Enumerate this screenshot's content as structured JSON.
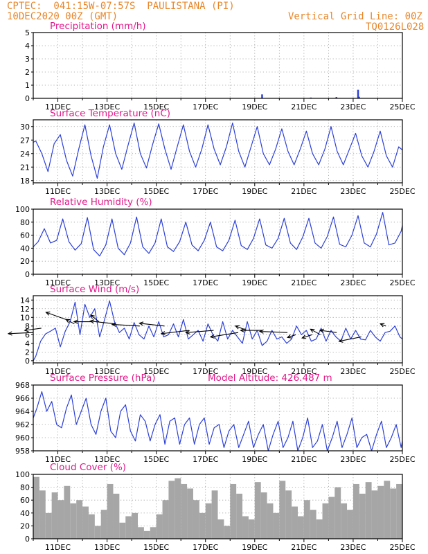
{
  "header": {
    "left_line1": "CPTEC:  041:15W-07:57S  PAULISTANA (PI)",
    "left_line2": "10DEC2020 00Z (GMT)",
    "right_line1": "Vertical Grid Line: 00Z",
    "right_line2": "TQ0126L028"
  },
  "colors": {
    "header": "#e8862a",
    "title": "#e0198a",
    "line": "#2b3fd6",
    "cloud": "#a6a6a6",
    "grid": "#9a9a9a"
  },
  "chart_data": [
    {
      "type": "bar",
      "title": "Precipitation (mm/h)",
      "x_tick_labels": [
        "11DEC",
        "13DEC",
        "15DEC",
        "17DEC",
        "19DEC",
        "21DEC",
        "23DEC",
        "25DEC"
      ],
      "ylim": [
        0,
        5
      ],
      "yticks": [
        "0",
        "1",
        "2",
        "3",
        "4",
        "5"
      ],
      "grid": true,
      "series": [
        {
          "x_days": [
            9.3,
            11.28,
            12.32,
            13.2,
            13.24
          ],
          "values": [
            0.3,
            0.06,
            0.1,
            0.65,
            0.12
          ]
        }
      ]
    },
    {
      "type": "line",
      "title": "Surface Temperature (nC)",
      "x_tick_labels": [
        "11DEC",
        "13DEC",
        "15DEC",
        "17DEC",
        "19DEC",
        "21DEC",
        "23DEC",
        "25DEC"
      ],
      "ylim": [
        17.5,
        31.5
      ],
      "yticks": [
        "18",
        "21",
        "24",
        "27",
        "30"
      ],
      "grid": true,
      "series": [
        {
          "x_days": [
            0.0,
            0.1,
            0.35,
            0.6,
            0.85,
            1.1,
            1.35,
            1.6,
            1.85,
            2.1,
            2.35,
            2.6,
            2.85,
            3.1,
            3.35,
            3.6,
            3.85,
            4.1,
            4.35,
            4.6,
            4.85,
            5.1,
            5.35,
            5.6,
            5.85,
            6.1,
            6.35,
            6.6,
            6.85,
            7.1,
            7.35,
            7.6,
            7.85,
            8.1,
            8.35,
            8.6,
            8.85,
            9.1,
            9.35,
            9.6,
            9.85,
            10.1,
            10.35,
            10.6,
            10.85,
            11.1,
            11.35,
            11.6,
            11.85,
            12.1,
            12.35,
            12.6,
            12.85,
            13.1,
            13.35,
            13.6,
            13.85,
            14.1,
            14.35,
            14.6,
            14.85,
            15.0
          ],
          "values": [
            26.5,
            26.8,
            24.0,
            20.0,
            26.2,
            28.2,
            22.5,
            19.0,
            25.0,
            30.4,
            23.5,
            18.5,
            25.5,
            30.4,
            24.0,
            20.5,
            25.8,
            30.8,
            24.0,
            20.8,
            26.0,
            30.6,
            25.0,
            20.5,
            25.5,
            30.4,
            24.5,
            21.0,
            25.0,
            30.4,
            25.0,
            21.5,
            25.5,
            30.8,
            24.5,
            21.0,
            25.5,
            30.0,
            24.0,
            21.5,
            25.0,
            29.5,
            24.5,
            21.5,
            25.0,
            29.0,
            24.0,
            21.5,
            25.0,
            30.0,
            24.5,
            21.5,
            25.0,
            28.5,
            23.5,
            21.0,
            24.5,
            29.0,
            23.5,
            21.0,
            25.5,
            24.8
          ]
        }
      ]
    },
    {
      "type": "line",
      "title": "Relative Humidity (%)",
      "x_tick_labels": [
        "11DEC",
        "13DEC",
        "15DEC",
        "17DEC",
        "19DEC",
        "21DEC",
        "23DEC",
        "25DEC"
      ],
      "ylim": [
        0,
        100
      ],
      "yticks": [
        "0",
        "20",
        "40",
        "60",
        "80",
        "100"
      ],
      "grid": true,
      "series": [
        {
          "x_days": [
            0.0,
            0.2,
            0.45,
            0.7,
            0.95,
            1.2,
            1.45,
            1.7,
            1.95,
            2.2,
            2.45,
            2.7,
            2.95,
            3.2,
            3.45,
            3.7,
            3.95,
            4.2,
            4.45,
            4.7,
            4.95,
            5.2,
            5.45,
            5.7,
            5.95,
            6.2,
            6.45,
            6.7,
            6.95,
            7.2,
            7.45,
            7.7,
            7.95,
            8.2,
            8.45,
            8.7,
            8.95,
            9.2,
            9.45,
            9.7,
            9.95,
            10.2,
            10.45,
            10.7,
            10.95,
            11.2,
            11.45,
            11.7,
            11.95,
            12.2,
            12.45,
            12.7,
            12.95,
            13.2,
            13.45,
            13.7,
            13.95,
            14.2,
            14.45,
            14.7,
            14.95,
            15.0
          ],
          "values": [
            42,
            50,
            70,
            48,
            52,
            85,
            50,
            37,
            47,
            87,
            38,
            28,
            45,
            85,
            40,
            30,
            48,
            88,
            42,
            32,
            48,
            85,
            42,
            35,
            50,
            80,
            45,
            36,
            52,
            80,
            42,
            36,
            52,
            83,
            44,
            38,
            55,
            85,
            45,
            40,
            55,
            86,
            48,
            38,
            57,
            86,
            48,
            40,
            58,
            88,
            46,
            42,
            60,
            90,
            48,
            42,
            62,
            95,
            45,
            48,
            66,
            75
          ]
        }
      ]
    },
    {
      "type": "line",
      "title": "Surface Wind (m/s)",
      "x_tick_labels": [
        "11DEC",
        "13DEC",
        "15DEC",
        "17DEC",
        "19DEC",
        "21DEC",
        "23DEC",
        "25DEC"
      ],
      "ylim": [
        -0.5,
        15
      ],
      "yticks": [
        "0",
        "2",
        "4",
        "6",
        "8",
        "10",
        "12",
        "14"
      ],
      "grid": true,
      "series": [
        {
          "x_days": [
            0.0,
            0.1,
            0.3,
            0.5,
            0.7,
            0.9,
            1.1,
            1.3,
            1.5,
            1.7,
            1.9,
            2.1,
            2.3,
            2.5,
            2.7,
            2.9,
            3.1,
            3.3,
            3.5,
            3.7,
            3.9,
            4.1,
            4.3,
            4.5,
            4.7,
            4.9,
            5.1,
            5.3,
            5.5,
            5.7,
            5.9,
            6.1,
            6.3,
            6.5,
            6.7,
            6.9,
            7.1,
            7.3,
            7.5,
            7.7,
            7.9,
            8.1,
            8.3,
            8.5,
            8.7,
            8.9,
            9.1,
            9.3,
            9.5,
            9.7,
            9.9,
            10.1,
            10.3,
            10.5,
            10.7,
            10.9,
            11.1,
            11.3,
            11.5,
            11.7,
            11.9,
            12.1,
            12.3,
            12.5,
            12.7,
            12.9,
            13.1,
            13.3,
            13.5,
            13.7,
            13.9,
            14.1,
            14.3,
            14.5,
            14.7,
            14.9,
            15.0
          ],
          "values": [
            0,
            1.0,
            4.5,
            6.2,
            6.8,
            7.5,
            3.2,
            6.8,
            9.0,
            13.5,
            6.0,
            13.0,
            10.0,
            12.0,
            5.5,
            9.5,
            13.8,
            9.0,
            6.5,
            7.5,
            5.0,
            8.8,
            6.0,
            5.0,
            8.0,
            5.5,
            9.0,
            5.5,
            6.0,
            8.5,
            5.5,
            9.5,
            5.0,
            6.0,
            7.0,
            4.5,
            8.5,
            6.0,
            4.5,
            9.0,
            5.0,
            7.0,
            5.5,
            4.0,
            9.0,
            5.0,
            7.0,
            3.5,
            4.5,
            7.0,
            5.0,
            5.5,
            4.0,
            5.0,
            8.0,
            6.0,
            7.0,
            4.5,
            5.0,
            7.5,
            4.5,
            7.0,
            5.5,
            4.5,
            7.5,
            5.0,
            7.0,
            5.0,
            4.8,
            7.0,
            5.5,
            4.5,
            6.5,
            6.8,
            8.0,
            5.5,
            5.0
          ]
        }
      ],
      "wind_arrows": [
        {
          "x_day": 0.0,
          "speed": 6.5,
          "u": -4.5,
          "v": -0.2
        },
        {
          "x_day": 0.33,
          "speed": 7.5,
          "u": -3.0,
          "v": -0.4
        },
        {
          "x_day": 1.33,
          "speed": 9.5,
          "u": -3.6,
          "v": 1.3
        },
        {
          "x_day": 1.67,
          "speed": 8.5,
          "u": -1.5,
          "v": 0.8
        },
        {
          "x_day": 2.33,
          "speed": 9.0,
          "u": -3.0,
          "v": 0.0
        },
        {
          "x_day": 2.67,
          "speed": 9.0,
          "u": -1.5,
          "v": 1.2
        },
        {
          "x_day": 3.33,
          "speed": 8.5,
          "u": -4.5,
          "v": 0.5
        },
        {
          "x_day": 4.33,
          "speed": 8.0,
          "u": -5.0,
          "v": 0.3
        },
        {
          "x_day": 5.33,
          "speed": 8.0,
          "u": -4.5,
          "v": 0.5
        },
        {
          "x_day": 6.33,
          "speed": 7.0,
          "u": -5.0,
          "v": -0.6
        },
        {
          "x_day": 7.33,
          "speed": 7.0,
          "u": -5.0,
          "v": -0.4
        },
        {
          "x_day": 8.33,
          "speed": 6.5,
          "u": -5.0,
          "v": -0.8
        },
        {
          "x_day": 8.67,
          "speed": 7.0,
          "u": -2.0,
          "v": 0.8
        },
        {
          "x_day": 9.33,
          "speed": 7.0,
          "u": -4.0,
          "v": 0.0
        },
        {
          "x_day": 10.33,
          "speed": 6.5,
          "u": -5.0,
          "v": 0.2
        },
        {
          "x_day": 10.67,
          "speed": 6.0,
          "u": -1.5,
          "v": -0.5
        },
        {
          "x_day": 11.33,
          "speed": 6.0,
          "u": -1.8,
          "v": -0.6
        },
        {
          "x_day": 11.67,
          "speed": 6.0,
          "u": -1.8,
          "v": 1.0
        },
        {
          "x_day": 12.33,
          "speed": 6.5,
          "u": -3.0,
          "v": 0.4
        },
        {
          "x_day": 13.33,
          "speed": 5.5,
          "u": -4.0,
          "v": -0.8
        },
        {
          "x_day": 14.33,
          "speed": 8.0,
          "u": -1.0,
          "v": 0.4
        }
      ]
    },
    {
      "type": "line",
      "title": "Surface Pressure (hPa)",
      "annotation": "Model Altitude: 426.487 m",
      "x_tick_labels": [
        "11DEC",
        "13DEC",
        "15DEC",
        "17DEC",
        "19DEC",
        "21DEC",
        "23DEC",
        "25DEC"
      ],
      "ylim": [
        958,
        968
      ],
      "yticks": [
        "958",
        "960",
        "962",
        "964",
        "966",
        "968"
      ],
      "grid": true,
      "series": [
        {
          "x_days": [
            0.0,
            0.15,
            0.35,
            0.55,
            0.75,
            0.95,
            1.15,
            1.35,
            1.55,
            1.75,
            1.95,
            2.15,
            2.35,
            2.55,
            2.75,
            2.95,
            3.15,
            3.35,
            3.55,
            3.75,
            3.95,
            4.15,
            4.35,
            4.55,
            4.75,
            4.95,
            5.15,
            5.35,
            5.55,
            5.75,
            5.95,
            6.15,
            6.35,
            6.55,
            6.75,
            6.95,
            7.15,
            7.35,
            7.55,
            7.75,
            7.95,
            8.15,
            8.35,
            8.55,
            8.75,
            8.95,
            9.15,
            9.35,
            9.55,
            9.75,
            9.95,
            10.15,
            10.35,
            10.55,
            10.75,
            10.95,
            11.15,
            11.35,
            11.55,
            11.75,
            11.95,
            12.15,
            12.35,
            12.55,
            12.75,
            12.95,
            13.15,
            13.35,
            13.55,
            13.75,
            13.95,
            14.15,
            14.35,
            14.55,
            14.75,
            14.95,
            15.0
          ],
          "values": [
            963.0,
            964.5,
            967.0,
            964.0,
            965.5,
            962.0,
            961.5,
            964.5,
            966.5,
            962.0,
            964.0,
            966.0,
            962.0,
            960.5,
            964.0,
            966.0,
            961.0,
            960.0,
            964.0,
            965.0,
            961.0,
            959.5,
            963.5,
            962.5,
            959.5,
            962.0,
            963.5,
            959.0,
            962.5,
            963.0,
            959.0,
            962.0,
            963.0,
            959.0,
            962.0,
            963.0,
            959.0,
            961.5,
            962.0,
            958.5,
            961.0,
            962.0,
            958.5,
            960.5,
            962.5,
            958.5,
            960.5,
            962.0,
            958.0,
            960.5,
            962.5,
            958.5,
            960.0,
            962.5,
            958.0,
            960.0,
            963.0,
            958.5,
            959.5,
            962.0,
            958.0,
            960.0,
            962.5,
            958.5,
            960.5,
            963.0,
            958.5,
            960.0,
            960.5,
            958.0,
            960.5,
            962.5,
            958.5,
            960.0,
            962.0,
            958.5,
            959.5
          ]
        }
      ]
    },
    {
      "type": "bar",
      "title": "Cloud Cover (%)",
      "x_tick_labels": [
        "11DEC",
        "13DEC",
        "15DEC",
        "17DEC",
        "19DEC",
        "21DEC",
        "23DEC",
        "25DEC"
      ],
      "ylim": [
        0,
        100
      ],
      "yticks": [
        "0",
        "20",
        "40",
        "60",
        "80",
        "100"
      ],
      "grid": true,
      "series": [
        {
          "x_days": [
            0.0,
            0.25,
            0.5,
            0.75,
            1.0,
            1.25,
            1.5,
            1.75,
            2.0,
            2.25,
            2.5,
            2.75,
            3.0,
            3.25,
            3.5,
            3.75,
            4.0,
            4.25,
            4.5,
            4.75,
            5.0,
            5.25,
            5.5,
            5.75,
            6.0,
            6.25,
            6.5,
            6.75,
            7.0,
            7.25,
            7.5,
            7.75,
            8.0,
            8.25,
            8.5,
            8.75,
            9.0,
            9.25,
            9.5,
            9.75,
            10.0,
            10.25,
            10.5,
            10.75,
            11.0,
            11.25,
            11.5,
            11.75,
            12.0,
            12.25,
            12.5,
            12.75,
            13.0,
            13.25,
            13.5,
            13.75,
            14.0,
            14.25,
            14.5,
            14.75
          ],
          "values": [
            96,
            75,
            40,
            72,
            60,
            82,
            55,
            60,
            50,
            38,
            20,
            45,
            85,
            70,
            25,
            35,
            40,
            18,
            12,
            18,
            38,
            60,
            90,
            94,
            85,
            78,
            60,
            40,
            55,
            75,
            30,
            20,
            85,
            70,
            35,
            30,
            88,
            72,
            55,
            40,
            90,
            75,
            50,
            35,
            60,
            45,
            30,
            55,
            65,
            80,
            55,
            45,
            85,
            70,
            88,
            75,
            82,
            90,
            78,
            85
          ]
        }
      ]
    }
  ]
}
